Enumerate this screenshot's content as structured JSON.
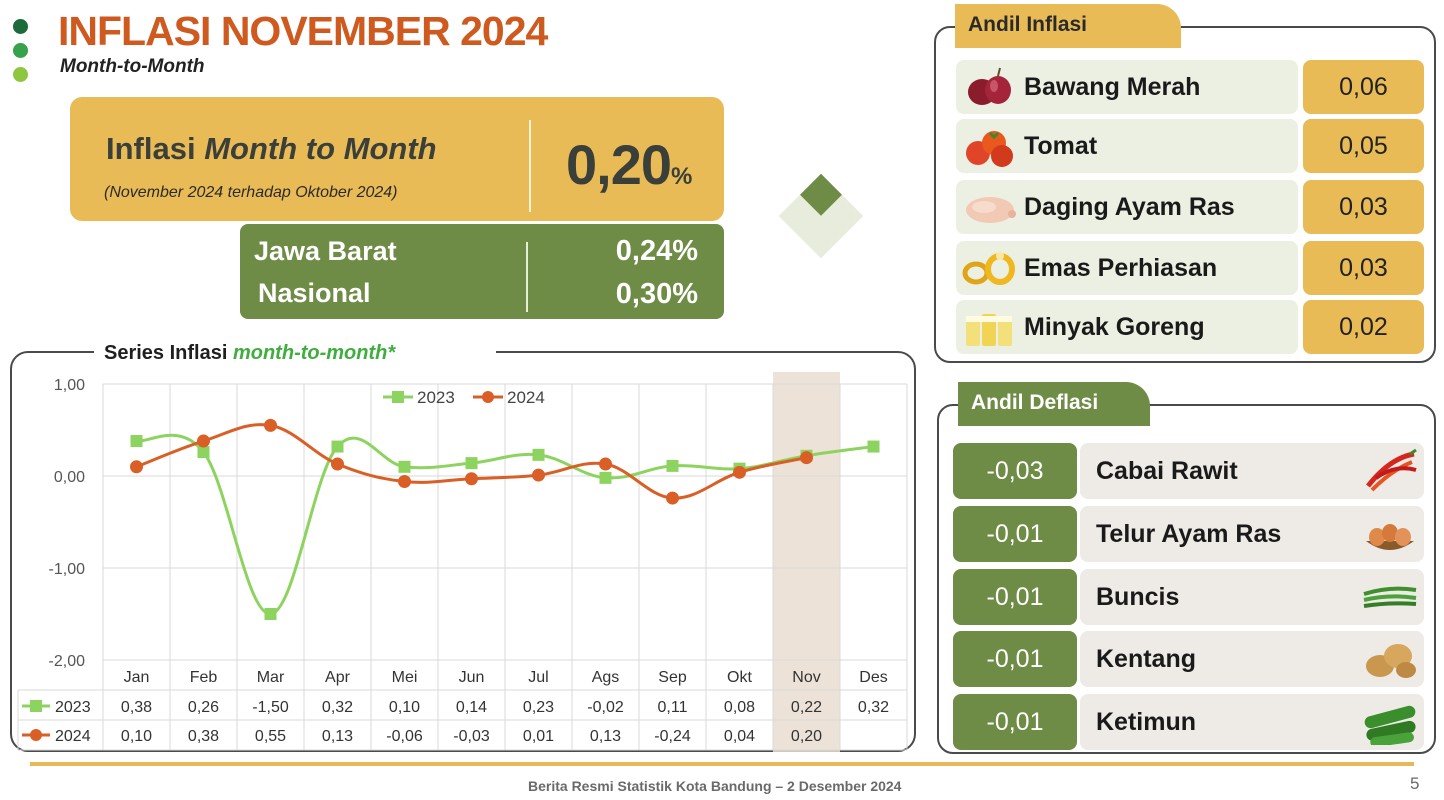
{
  "header": {
    "title": "INFLASI NOVEMBER 2024",
    "subtitle": "Month-to-Month",
    "dot_colors": [
      "#1e6b3a",
      "#36a24b",
      "#8dc63f"
    ]
  },
  "mtm": {
    "label_prefix": "Inflasi ",
    "label_italic": "Month to Month",
    "note": "(November 2024 terhadap Oktober 2024)",
    "value": "0,20",
    "unit": "%"
  },
  "regions": [
    {
      "name": "Jawa Barat",
      "value": "0,24%"
    },
    {
      "name": "Nasional",
      "value": "0,30%"
    }
  ],
  "chart_heading": {
    "prefix": "Series Inflasi ",
    "italic": "month-to-month*"
  },
  "chart_data": {
    "type": "line",
    "categories": [
      "Jan",
      "Feb",
      "Mar",
      "Apr",
      "Mei",
      "Jun",
      "Jul",
      "Ags",
      "Sep",
      "Okt",
      "Nov",
      "Des"
    ],
    "series": [
      {
        "name": "2023",
        "color": "#8dd35f",
        "values": [
          0.38,
          0.26,
          -1.5,
          0.32,
          0.1,
          0.14,
          0.23,
          -0.02,
          0.11,
          0.08,
          0.22,
          0.32
        ],
        "labels": [
          "0,38",
          "0,26",
          "-1,50",
          "0,32",
          "0,10",
          "0,14",
          "0,23",
          "-0,02",
          "0,11",
          "0,08",
          "0,22",
          "0,32"
        ]
      },
      {
        "name": "2024",
        "color": "#d95f26",
        "values": [
          0.1,
          0.38,
          0.55,
          0.13,
          -0.06,
          -0.03,
          0.01,
          0.13,
          -0.24,
          0.04,
          0.2,
          null
        ],
        "labels": [
          "0,10",
          "0,38",
          "0,55",
          "0,13",
          "-0,06",
          "-0,03",
          "0,01",
          "0,13",
          "-0,24",
          "0,04",
          "0,20",
          ""
        ]
      }
    ],
    "ylim": [
      -2.0,
      1.0
    ],
    "yticks": [
      1.0,
      0.0,
      -1.0,
      -2.0
    ],
    "ytick_labels": [
      "1,00",
      "0,00",
      "-1,00",
      "-2,00"
    ],
    "highlight_category": "Nov",
    "legend": "top-center",
    "grid": true,
    "data_table": true
  },
  "andil_inflasi": {
    "tab": "Andil Inflasi",
    "items": [
      {
        "name": "Bawang Merah",
        "value": "0,06",
        "icon": "red-onion-icon"
      },
      {
        "name": "Tomat",
        "value": "0,05",
        "icon": "tomato-icon"
      },
      {
        "name": "Daging Ayam Ras",
        "value": "0,03",
        "icon": "chicken-icon"
      },
      {
        "name": "Emas Perhiasan",
        "value": "0,03",
        "icon": "gold-ring-icon"
      },
      {
        "name": "Minyak Goreng",
        "value": "0,02",
        "icon": "cooking-oil-icon"
      }
    ]
  },
  "andil_deflasi": {
    "tab": "Andil Deflasi",
    "items": [
      {
        "name": "Cabai Rawit",
        "value": "-0,03",
        "icon": "chili-icon"
      },
      {
        "name": "Telur Ayam Ras",
        "value": "-0,01",
        "icon": "eggs-icon"
      },
      {
        "name": "Buncis",
        "value": "-0,01",
        "icon": "green-beans-icon"
      },
      {
        "name": "Kentang",
        "value": "-0,01",
        "icon": "potato-icon"
      },
      {
        "name": "Ketimun",
        "value": "-0,01",
        "icon": "cucumber-icon"
      }
    ]
  },
  "footer": {
    "text": "Berita Resmi Statistik Kota Bandung –  2 Desember 2024",
    "page": "5"
  }
}
